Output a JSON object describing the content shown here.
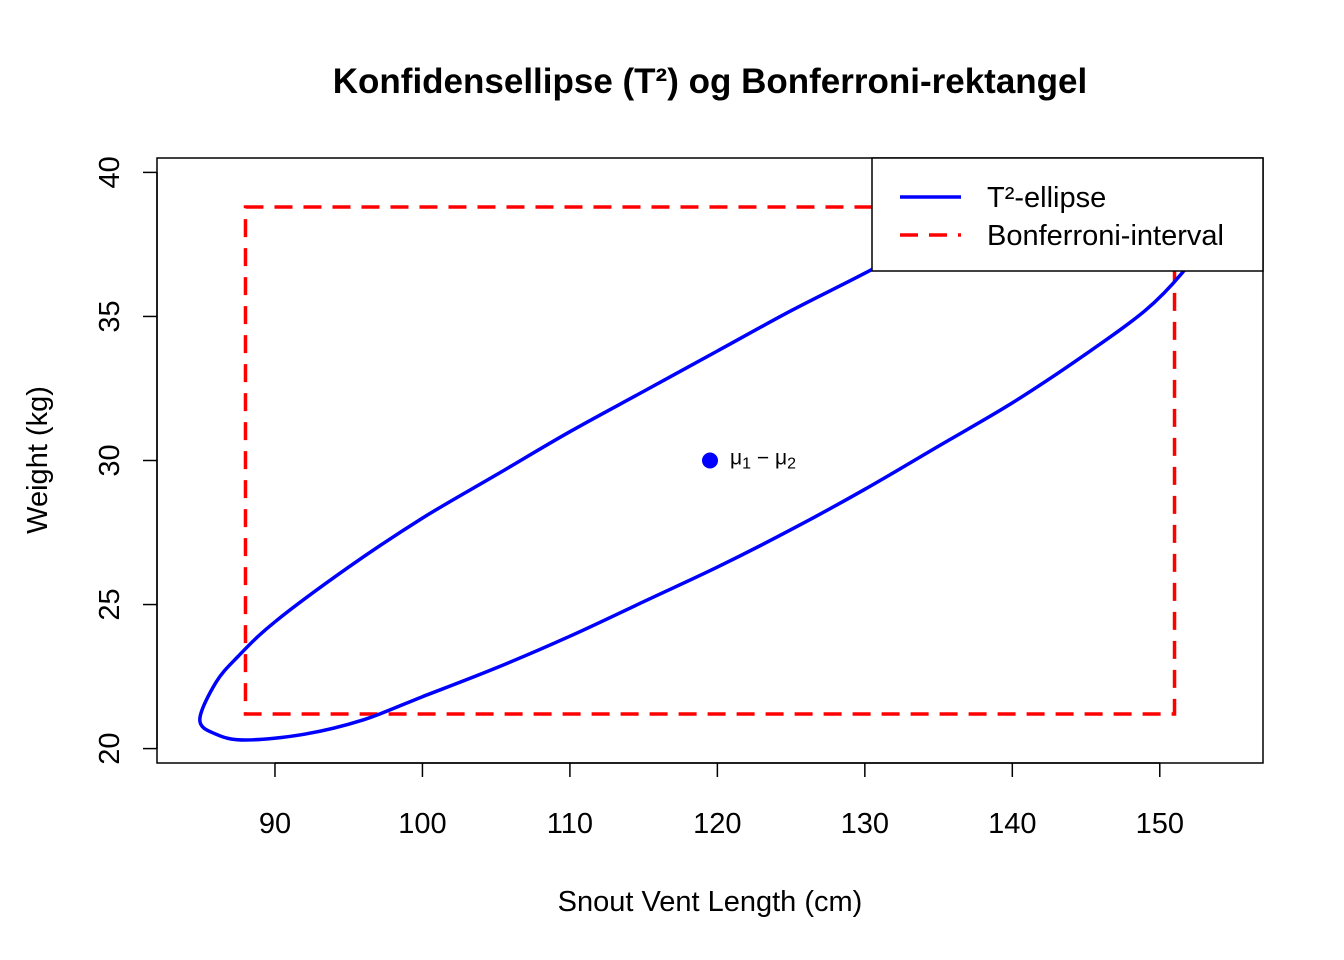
{
  "chart_data": {
    "type": "scatter",
    "title": "Konfidensellipse (T²) og Bonferroni-rektangel",
    "xlabel": "Snout Vent Length (cm)",
    "ylabel": "Weight (kg)",
    "xlim": [
      82,
      157
    ],
    "ylim": [
      19.5,
      40.5
    ],
    "xticks": [
      90,
      100,
      110,
      120,
      130,
      140,
      150
    ],
    "yticks": [
      20,
      25,
      30,
      35,
      40
    ],
    "grid": false,
    "legend_position": "top-right",
    "center_point": {
      "x": 119.5,
      "y": 30,
      "label_main": "μ",
      "label_sub1": "1",
      "label_minus": " − μ",
      "label_sub2": "2",
      "color": "#0000ff"
    },
    "series": [
      {
        "name": "T²-ellipse",
        "kind": "ellipse",
        "color": "#0000ff",
        "line_style": "solid",
        "points": [
          [
            84.9,
            21.0
          ],
          [
            86.0,
            20.5
          ],
          [
            88.0,
            20.3
          ],
          [
            92.0,
            20.5
          ],
          [
            96.0,
            21.0
          ],
          [
            100.0,
            21.8
          ],
          [
            105.0,
            22.8
          ],
          [
            110.0,
            23.9
          ],
          [
            115.0,
            25.1
          ],
          [
            120.0,
            26.3
          ],
          [
            125.0,
            27.6
          ],
          [
            130.0,
            29.0
          ],
          [
            135.0,
            30.5
          ],
          [
            140.0,
            32.0
          ],
          [
            145.0,
            33.7
          ],
          [
            149.0,
            35.2
          ],
          [
            151.5,
            36.5
          ],
          [
            152.8,
            37.5
          ],
          [
            153.0,
            38.3
          ],
          [
            152.0,
            39.0
          ],
          [
            150.0,
            39.4
          ],
          [
            146.0,
            39.5
          ],
          [
            142.0,
            39.1
          ],
          [
            138.0,
            38.5
          ],
          [
            134.0,
            37.6
          ],
          [
            130.0,
            36.5
          ],
          [
            125.0,
            35.2
          ],
          [
            120.0,
            33.8
          ],
          [
            115.0,
            32.4
          ],
          [
            110.0,
            31.0
          ],
          [
            105.0,
            29.5
          ],
          [
            100.0,
            28.0
          ],
          [
            95.0,
            26.3
          ],
          [
            90.0,
            24.4
          ],
          [
            87.5,
            23.2
          ],
          [
            86.0,
            22.3
          ],
          [
            84.9,
            21.0
          ]
        ]
      },
      {
        "name": "Bonferroni-interval",
        "kind": "rectangle",
        "color": "#ff0000",
        "line_style": "dashed",
        "x_range": [
          88.0,
          151.0
        ],
        "y_range": [
          21.2,
          38.8
        ]
      }
    ]
  }
}
